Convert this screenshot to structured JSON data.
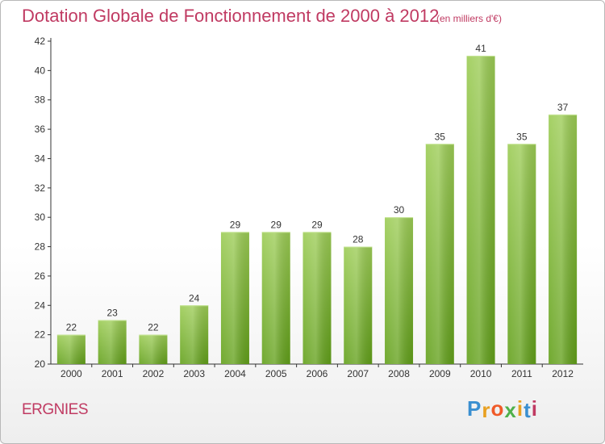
{
  "title": "Dotation Globale de Fonctionnement de 2000 à 2012",
  "subtitle": "(en milliers d'€)",
  "commune": "ERGNIES",
  "logo": {
    "letters": [
      "P",
      "r",
      "o",
      "x",
      "i",
      "t",
      "i"
    ],
    "colors": [
      "#3a8fd0",
      "#e8a020",
      "#f05a28",
      "#4fb04a",
      "#e8a020",
      "#3a8fd0",
      "#c03a62"
    ]
  },
  "colors": {
    "bar_top": "#9ccc55",
    "bar_bottom": "#62a01a",
    "axis": "#333333",
    "grid": "#dddddd",
    "title": "#c03a62"
  },
  "chart_data": {
    "type": "bar",
    "categories": [
      "2000",
      "2001",
      "2002",
      "2003",
      "2004",
      "2005",
      "2006",
      "2007",
      "2008",
      "2009",
      "2010",
      "2011",
      "2012"
    ],
    "values": [
      22,
      23,
      22,
      24,
      29,
      29,
      29,
      28,
      30,
      35,
      41,
      35,
      37
    ],
    "ylim": [
      20,
      42
    ],
    "yticks": [
      20,
      22,
      24,
      26,
      28,
      30,
      32,
      34,
      36,
      38,
      40,
      42
    ],
    "grid": false,
    "data_labels": true
  }
}
